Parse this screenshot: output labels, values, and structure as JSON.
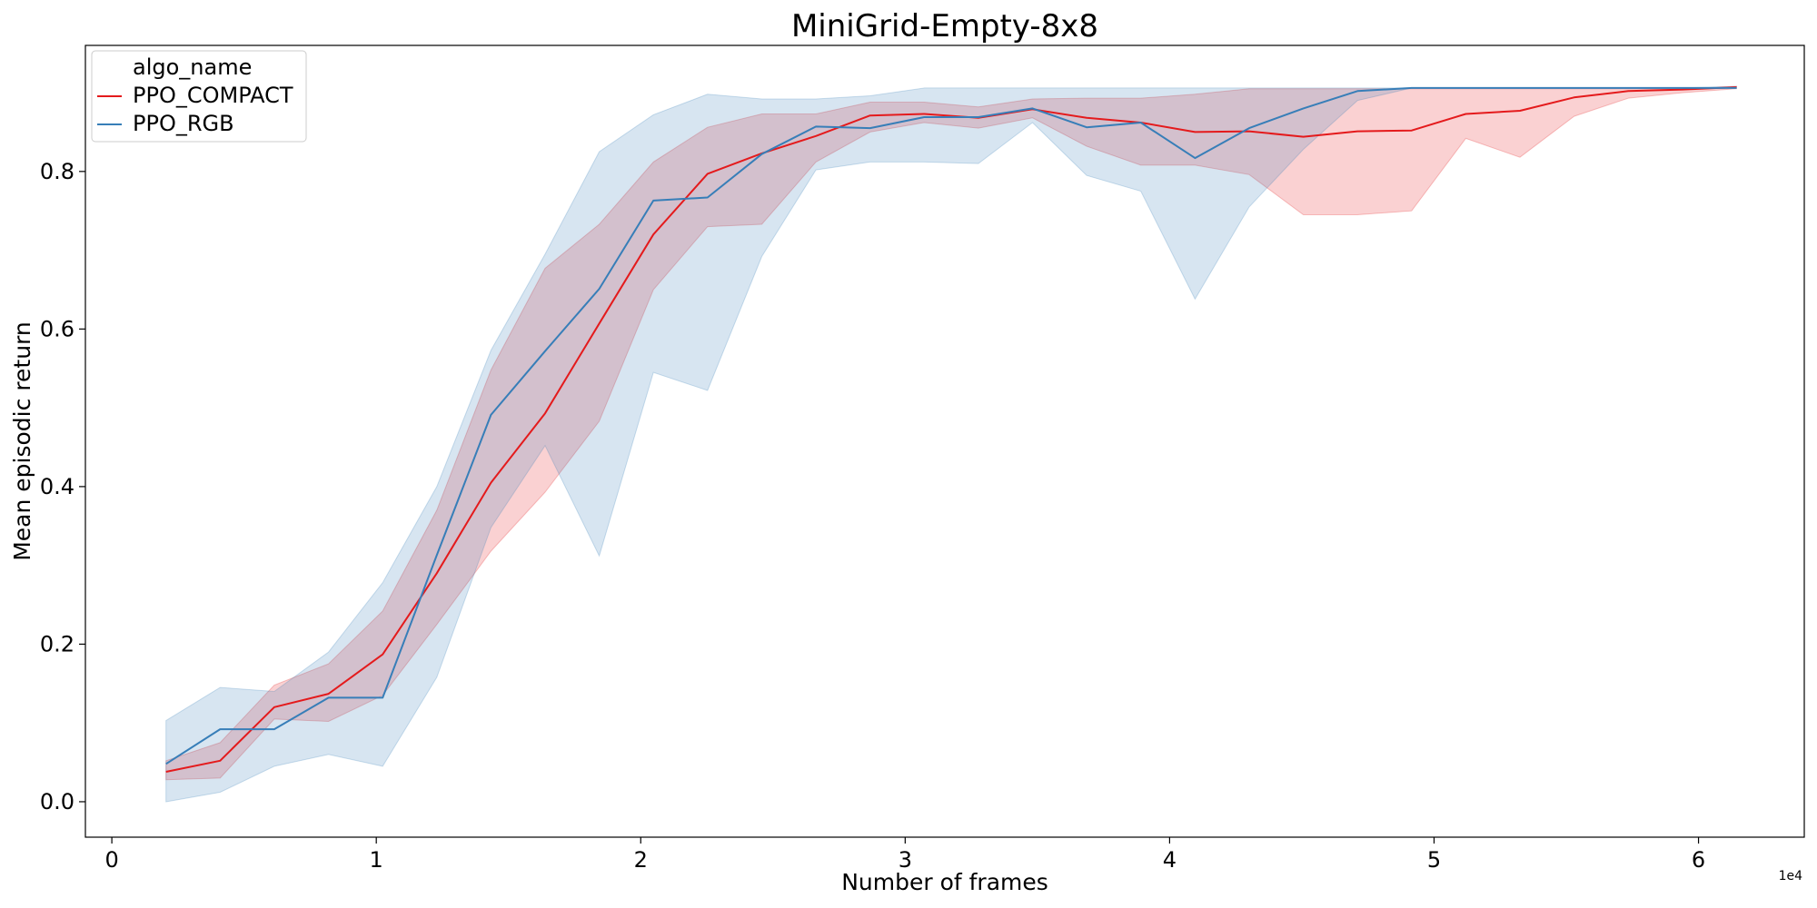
{
  "chart_data": {
    "type": "line",
    "title": "MiniGrid-Empty-8x8",
    "xlabel": "Number of frames",
    "ylabel": "Mean episodic return",
    "x_offset_label": "1e4",
    "xlim": [
      -0.1,
      6.4
    ],
    "ylim": [
      -0.045,
      0.96
    ],
    "x_ticks": [
      0,
      1,
      2,
      3,
      4,
      5,
      6
    ],
    "x_tick_labels": [
      "0",
      "1",
      "2",
      "3",
      "4",
      "5",
      "6"
    ],
    "y_ticks": [
      0.0,
      0.2,
      0.4,
      0.6,
      0.8
    ],
    "y_tick_labels": [
      "0.0",
      "0.2",
      "0.4",
      "0.6",
      "0.8"
    ],
    "grid": false,
    "legend": {
      "title": "algo_name",
      "placement": "top-left"
    },
    "x": [
      0.2048,
      0.4096,
      0.6144,
      0.8192,
      1.024,
      1.2288,
      1.4336,
      1.6384,
      1.8432,
      2.048,
      2.2528,
      2.4576,
      2.6624,
      2.8672,
      3.072,
      3.2768,
      3.4816,
      3.6864,
      3.8912,
      4.096,
      4.3008,
      4.5056,
      4.7104,
      4.9152,
      5.12,
      5.3248,
      5.5296,
      5.7344,
      5.9392,
      6.144
    ],
    "series": [
      {
        "name": "PPO_COMPACT",
        "color": "#e41a1c",
        "values": [
          0.038,
          0.052,
          0.12,
          0.137,
          0.187,
          0.29,
          0.405,
          0.493,
          0.607,
          0.72,
          0.797,
          0.823,
          0.845,
          0.871,
          0.873,
          0.868,
          0.879,
          0.868,
          0.862,
          0.85,
          0.851,
          0.844,
          0.851,
          0.852,
          0.873,
          0.877,
          0.894,
          0.902,
          0.904,
          0.907
        ],
        "ci_low": [
          0.028,
          0.03,
          0.105,
          0.102,
          0.135,
          0.225,
          0.318,
          0.393,
          0.483,
          0.65,
          0.73,
          0.733,
          0.812,
          0.85,
          0.862,
          0.855,
          0.868,
          0.832,
          0.808,
          0.808,
          0.796,
          0.745,
          0.745,
          0.75,
          0.842,
          0.818,
          0.87,
          0.893,
          0.9,
          0.905
        ],
        "ci_high": [
          0.052,
          0.075,
          0.148,
          0.175,
          0.242,
          0.37,
          0.548,
          0.677,
          0.733,
          0.812,
          0.856,
          0.873,
          0.873,
          0.888,
          0.888,
          0.882,
          0.892,
          0.893,
          0.893,
          0.898,
          0.905,
          0.905,
          0.905,
          0.905,
          0.905,
          0.905,
          0.905,
          0.905,
          0.905,
          0.908
        ]
      },
      {
        "name": "PPO_RGB",
        "color": "#377eb8",
        "values": [
          0.048,
          0.092,
          0.092,
          0.132,
          0.132,
          0.313,
          0.491,
          0.572,
          0.651,
          0.763,
          0.767,
          0.822,
          0.857,
          0.855,
          0.869,
          0.869,
          0.88,
          0.856,
          0.862,
          0.817,
          0.855,
          0.88,
          0.902,
          0.906,
          0.906,
          0.906,
          0.906,
          0.906,
          0.906,
          0.906
        ],
        "ci_low": [
          0.0,
          0.012,
          0.045,
          0.06,
          0.045,
          0.158,
          0.348,
          0.452,
          0.312,
          0.545,
          0.522,
          0.692,
          0.802,
          0.812,
          0.812,
          0.81,
          0.862,
          0.795,
          0.775,
          0.638,
          0.755,
          0.828,
          0.89,
          0.906,
          0.906,
          0.906,
          0.906,
          0.906,
          0.906,
          0.906
        ],
        "ci_high": [
          0.103,
          0.145,
          0.14,
          0.19,
          0.278,
          0.4,
          0.573,
          0.695,
          0.825,
          0.872,
          0.898,
          0.892,
          0.892,
          0.896,
          0.906,
          0.906,
          0.906,
          0.906,
          0.906,
          0.906,
          0.906,
          0.906,
          0.906,
          0.906,
          0.906,
          0.906,
          0.906,
          0.906,
          0.906,
          0.908
        ]
      }
    ]
  }
}
